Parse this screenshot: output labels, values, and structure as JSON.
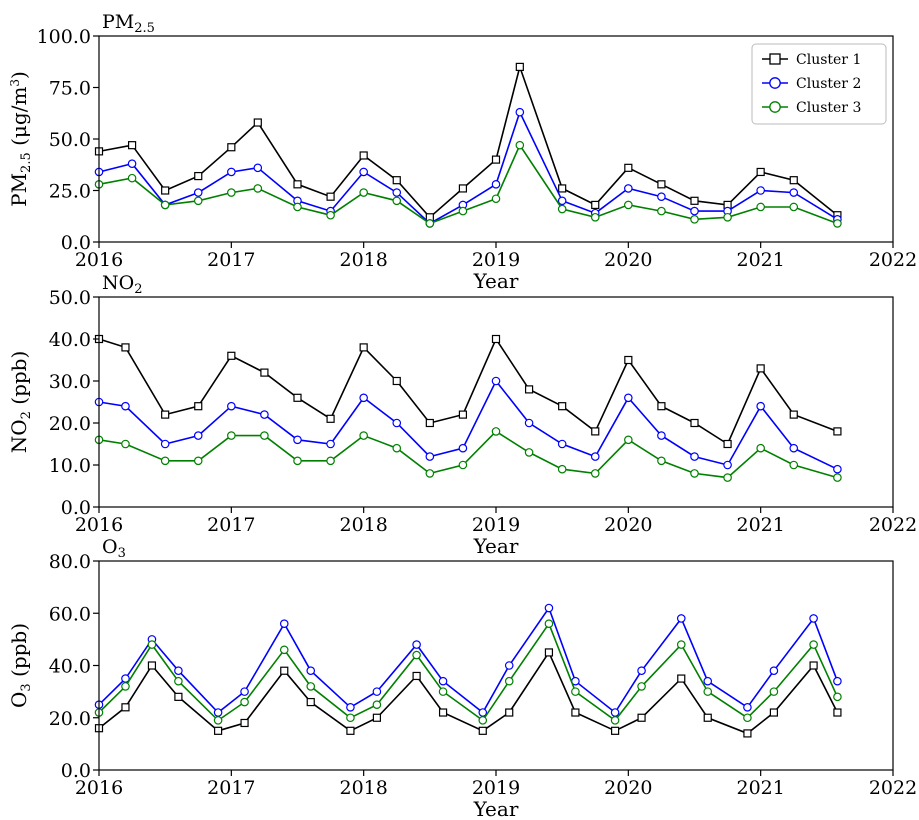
{
  "chart_data": [
    {
      "type": "line",
      "title": "PM",
      "title_sub": "2.5",
      "ylabel_main": "PM",
      "ylabel_sub": "2.5",
      "ylabel_unit_pre": " (μg/m",
      "ylabel_unit_sup": "3",
      "ylabel_unit_post": ")",
      "xlabel": "Year",
      "xlim": [
        2016,
        2022
      ],
      "ylim": [
        0,
        100
      ],
      "xticks": [
        "2016",
        "2017",
        "2018",
        "2019",
        "2020",
        "2021",
        "2022"
      ],
      "yticks": [
        "0.0",
        "25.0",
        "50.0",
        "75.0",
        "100.0"
      ],
      "legend": {
        "placement": "top-right",
        "entries": [
          "Cluster 1",
          "Cluster 2",
          "Cluster 3"
        ]
      },
      "series": [
        {
          "name": "Cluster 1",
          "color": "#000000",
          "marker": "square",
          "x": [
            2016.0,
            2016.25,
            2016.5,
            2016.75,
            2017.0,
            2017.2,
            2017.5,
            2017.75,
            2018.0,
            2018.25,
            2018.5,
            2018.75,
            2019.0,
            2019.18,
            2019.5,
            2019.75,
            2020.0,
            2020.25,
            2020.5,
            2020.75,
            2021.0,
            2021.25,
            2021.58
          ],
          "y": [
            44,
            47,
            25,
            32,
            46,
            58,
            28,
            22,
            42,
            30,
            12,
            26,
            40,
            85,
            26,
            18,
            36,
            28,
            20,
            18,
            34,
            30,
            13
          ]
        },
        {
          "name": "Cluster 2",
          "color": "#0000ff",
          "marker": "circle",
          "x": [
            2016.0,
            2016.25,
            2016.5,
            2016.75,
            2017.0,
            2017.2,
            2017.5,
            2017.75,
            2018.0,
            2018.25,
            2018.5,
            2018.75,
            2019.0,
            2019.18,
            2019.5,
            2019.75,
            2020.0,
            2020.25,
            2020.5,
            2020.75,
            2021.0,
            2021.25,
            2021.58
          ],
          "y": [
            34,
            38,
            18,
            24,
            34,
            36,
            20,
            15,
            34,
            24,
            9,
            18,
            28,
            63,
            20,
            14,
            26,
            22,
            15,
            15,
            25,
            24,
            11
          ]
        },
        {
          "name": "Cluster 3",
          "color": "#008000",
          "marker": "circle",
          "x": [
            2016.0,
            2016.25,
            2016.5,
            2016.75,
            2017.0,
            2017.2,
            2017.5,
            2017.75,
            2018.0,
            2018.25,
            2018.5,
            2018.75,
            2019.0,
            2019.18,
            2019.5,
            2019.75,
            2020.0,
            2020.25,
            2020.5,
            2020.75,
            2021.0,
            2021.25,
            2021.58
          ],
          "y": [
            28,
            31,
            18,
            20,
            24,
            26,
            17,
            13,
            24,
            20,
            9,
            15,
            21,
            47,
            16,
            12,
            18,
            15,
            11,
            12,
            17,
            17,
            9
          ]
        }
      ]
    },
    {
      "type": "line",
      "title": "NO",
      "title_sub": "2",
      "ylabel_main": "NO",
      "ylabel_sub": "2",
      "ylabel_unit_pre": " (ppb)",
      "ylabel_unit_sup": "",
      "ylabel_unit_post": "",
      "xlabel": "Year",
      "xlim": [
        2016,
        2022
      ],
      "ylim": [
        0,
        50
      ],
      "xticks": [
        "2016",
        "2017",
        "2018",
        "2019",
        "2020",
        "2021",
        "2022"
      ],
      "yticks": [
        "0.0",
        "10.0",
        "20.0",
        "30.0",
        "40.0",
        "50.0"
      ],
      "series": [
        {
          "name": "Cluster 1",
          "color": "#000000",
          "marker": "square",
          "x": [
            2016.0,
            2016.2,
            2016.5,
            2016.75,
            2017.0,
            2017.25,
            2017.5,
            2017.75,
            2018.0,
            2018.25,
            2018.5,
            2018.75,
            2019.0,
            2019.25,
            2019.5,
            2019.75,
            2020.0,
            2020.25,
            2020.5,
            2020.75,
            2021.0,
            2021.25,
            2021.58
          ],
          "y": [
            40,
            38,
            22,
            24,
            36,
            32,
            26,
            21,
            38,
            30,
            20,
            22,
            40,
            28,
            24,
            18,
            35,
            24,
            20,
            15,
            33,
            22,
            18
          ]
        },
        {
          "name": "Cluster 2",
          "color": "#0000ff",
          "marker": "circle",
          "x": [
            2016.0,
            2016.2,
            2016.5,
            2016.75,
            2017.0,
            2017.25,
            2017.5,
            2017.75,
            2018.0,
            2018.25,
            2018.5,
            2018.75,
            2019.0,
            2019.25,
            2019.5,
            2019.75,
            2020.0,
            2020.25,
            2020.5,
            2020.75,
            2021.0,
            2021.25,
            2021.58
          ],
          "y": [
            25,
            24,
            15,
            17,
            24,
            22,
            16,
            15,
            26,
            20,
            12,
            14,
            30,
            20,
            15,
            12,
            26,
            17,
            12,
            10,
            24,
            14,
            9
          ]
        },
        {
          "name": "Cluster 3",
          "color": "#008000",
          "marker": "circle",
          "x": [
            2016.0,
            2016.2,
            2016.5,
            2016.75,
            2017.0,
            2017.25,
            2017.5,
            2017.75,
            2018.0,
            2018.25,
            2018.5,
            2018.75,
            2019.0,
            2019.25,
            2019.5,
            2019.75,
            2020.0,
            2020.25,
            2020.5,
            2020.75,
            2021.0,
            2021.25,
            2021.58
          ],
          "y": [
            16,
            15,
            11,
            11,
            17,
            17,
            11,
            11,
            17,
            14,
            8,
            10,
            18,
            13,
            9,
            8,
            16,
            11,
            8,
            7,
            14,
            10,
            7
          ]
        }
      ]
    },
    {
      "type": "line",
      "title": "O",
      "title_sub": "3",
      "ylabel_main": "O",
      "ylabel_sub": "3",
      "ylabel_unit_pre": " (ppb)",
      "ylabel_unit_sup": "",
      "ylabel_unit_post": "",
      "xlabel": "Year",
      "xlim": [
        2016,
        2022
      ],
      "ylim": [
        0,
        80
      ],
      "xticks": [
        "2016",
        "2017",
        "2018",
        "2019",
        "2020",
        "2021",
        "2022"
      ],
      "yticks": [
        "0.0",
        "20.0",
        "40.0",
        "60.0",
        "80.0"
      ],
      "series": [
        {
          "name": "Cluster 1",
          "color": "#000000",
          "marker": "square",
          "x": [
            2016.0,
            2016.2,
            2016.4,
            2016.6,
            2016.9,
            2017.1,
            2017.4,
            2017.6,
            2017.9,
            2018.1,
            2018.4,
            2018.6,
            2018.9,
            2019.1,
            2019.4,
            2019.6,
            2019.9,
            2020.1,
            2020.4,
            2020.6,
            2020.9,
            2021.1,
            2021.4,
            2021.58
          ],
          "y": [
            16,
            24,
            40,
            28,
            15,
            18,
            38,
            26,
            15,
            20,
            36,
            22,
            15,
            22,
            45,
            22,
            15,
            20,
            35,
            20,
            14,
            22,
            40,
            22
          ]
        },
        {
          "name": "Cluster 2",
          "color": "#0000ff",
          "marker": "circle",
          "x": [
            2016.0,
            2016.2,
            2016.4,
            2016.6,
            2016.9,
            2017.1,
            2017.4,
            2017.6,
            2017.9,
            2018.1,
            2018.4,
            2018.6,
            2018.9,
            2019.1,
            2019.4,
            2019.6,
            2019.9,
            2020.1,
            2020.4,
            2020.6,
            2020.9,
            2021.1,
            2021.4,
            2021.58
          ],
          "y": [
            25,
            35,
            50,
            38,
            22,
            30,
            56,
            38,
            24,
            30,
            48,
            34,
            22,
            40,
            62,
            34,
            22,
            38,
            58,
            34,
            24,
            38,
            58,
            34
          ]
        },
        {
          "name": "Cluster 3",
          "color": "#008000",
          "marker": "circle",
          "x": [
            2016.0,
            2016.2,
            2016.4,
            2016.6,
            2016.9,
            2017.1,
            2017.4,
            2017.6,
            2017.9,
            2018.1,
            2018.4,
            2018.6,
            2018.9,
            2019.1,
            2019.4,
            2019.6,
            2019.9,
            2020.1,
            2020.4,
            2020.6,
            2020.9,
            2021.1,
            2021.4,
            2021.58
          ],
          "y": [
            22,
            32,
            48,
            34,
            19,
            26,
            46,
            32,
            20,
            25,
            44,
            30,
            19,
            34,
            56,
            30,
            19,
            32,
            48,
            30,
            20,
            30,
            48,
            28
          ]
        }
      ]
    }
  ]
}
